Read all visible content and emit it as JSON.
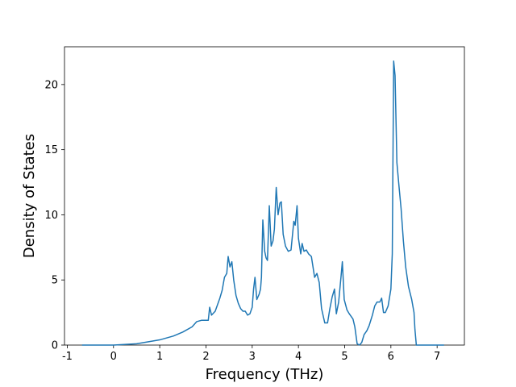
{
  "chart_data": {
    "type": "line",
    "x_label": "Frequency (THz)",
    "y_label": "Density of States",
    "color": "#1f77b4",
    "x": [
      -0.68,
      0,
      0.5,
      1,
      1.3,
      1.5,
      1.7,
      1.8,
      1.9,
      2.0,
      2.05,
      2.08,
      2.12,
      2.2,
      2.3,
      2.35,
      2.4,
      2.45,
      2.48,
      2.52,
      2.56,
      2.6,
      2.65,
      2.7,
      2.75,
      2.8,
      2.85,
      2.9,
      2.95,
      3.0,
      3.03,
      3.06,
      3.1,
      3.15,
      3.18,
      3.2,
      3.23,
      3.27,
      3.3,
      3.33,
      3.37,
      3.41,
      3.45,
      3.48,
      3.52,
      3.56,
      3.6,
      3.63,
      3.67,
      3.72,
      3.78,
      3.84,
      3.9,
      3.93,
      3.97,
      4.0,
      4.05,
      4.08,
      4.12,
      4.17,
      4.22,
      4.28,
      4.35,
      4.4,
      4.45,
      4.5,
      4.57,
      4.63,
      4.68,
      4.73,
      4.78,
      4.82,
      4.87,
      4.92,
      4.95,
      4.99,
      5.05,
      5.1,
      5.18,
      5.22,
      5.27,
      5.32,
      5.37,
      5.42,
      5.48,
      5.53,
      5.6,
      5.65,
      5.7,
      5.76,
      5.8,
      5.84,
      5.88,
      5.94,
      6.0,
      6.03,
      6.06,
      6.09,
      6.13,
      6.18,
      6.22,
      6.27,
      6.32,
      6.38,
      6.45,
      6.5,
      6.52,
      6.55,
      7.15
    ],
    "values": [
      0,
      0,
      0.1,
      0.4,
      0.7,
      1.0,
      1.4,
      1.8,
      1.9,
      1.9,
      1.9,
      2.9,
      2.3,
      2.6,
      3.6,
      4.2,
      5.2,
      5.5,
      6.8,
      6.0,
      6.4,
      5.0,
      3.8,
      3.2,
      2.8,
      2.6,
      2.6,
      2.3,
      2.4,
      2.9,
      4.3,
      5.2,
      3.5,
      3.9,
      4.3,
      5.2,
      9.6,
      7.2,
      6.7,
      6.5,
      10.7,
      7.6,
      8.0,
      8.9,
      12.1,
      10.0,
      10.9,
      11.0,
      8.5,
      7.6,
      7.2,
      7.3,
      9.5,
      9.2,
      10.7,
      8.2,
      7.0,
      7.8,
      7.2,
      7.3,
      7.0,
      6.8,
      5.2,
      5.5,
      4.8,
      2.8,
      1.7,
      1.7,
      2.8,
      3.7,
      4.3,
      2.4,
      3.3,
      5.2,
      6.4,
      3.5,
      2.7,
      2.4,
      2.0,
      1.4,
      0.1,
      0,
      0.2,
      0.8,
      1.1,
      1.5,
      2.3,
      3.0,
      3.3,
      3.3,
      3.6,
      2.5,
      2.5,
      3.0,
      4.3,
      7.0,
      21.8,
      20.7,
      14.0,
      12.0,
      10.5,
      8.0,
      6.0,
      4.5,
      3.5,
      2.5,
      1.2,
      0,
      0
    ],
    "xlim": [
      -1.06,
      7.59
    ],
    "ylim": [
      0,
      22.9
    ],
    "xticks": [
      -1,
      0,
      1,
      2,
      3,
      4,
      5,
      6,
      7
    ],
    "yticks": [
      0,
      5,
      10,
      15,
      20
    ]
  }
}
